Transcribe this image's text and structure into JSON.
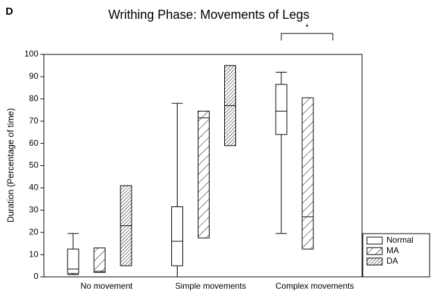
{
  "chart_data": {
    "type": "box",
    "panel_label": "D",
    "title": "Writhing Phase: Movements of Legs",
    "y_label": "Duration (Percentage of time)",
    "categories": [
      "No movement",
      "Simple movements",
      "Complex movements"
    ],
    "ylim": [
      0,
      100
    ],
    "yticks": [
      0,
      10,
      20,
      30,
      40,
      50,
      60,
      70,
      80,
      90,
      100
    ],
    "annotation": "*",
    "series": [
      {
        "name": "Normal",
        "color": "#000000",
        "pattern": "none",
        "values": [
          {
            "min": 1,
            "q1": 1.5,
            "median": 3.5,
            "q3": 12.5,
            "max": 19.5
          },
          {
            "min": 0,
            "q1": 5,
            "median": 16,
            "q3": 31.5,
            "max": 78
          },
          {
            "min": 19.5,
            "q1": 64,
            "median": 74.5,
            "q3": 86.5,
            "max": 92
          }
        ]
      },
      {
        "name": "MA",
        "color": "#000000",
        "pattern": "sparse",
        "values": [
          {
            "min": 2,
            "q1": 2,
            "median": 2.5,
            "q3": 13,
            "max": 13
          },
          {
            "min": 17.5,
            "q1": 17.5,
            "median": 71.5,
            "q3": 74.5,
            "max": 74.5
          },
          {
            "min": 12.5,
            "q1": 12.5,
            "median": 27,
            "q3": 80.5,
            "max": 80.5
          }
        ]
      },
      {
        "name": "DA",
        "color": "#000000",
        "pattern": "dense",
        "values": [
          {
            "min": 5,
            "q1": 5,
            "median": 23,
            "q3": 41,
            "max": 41
          },
          {
            "min": 59,
            "q1": 59,
            "median": 77,
            "q3": 95,
            "max": 95
          },
          null
        ]
      }
    ]
  }
}
